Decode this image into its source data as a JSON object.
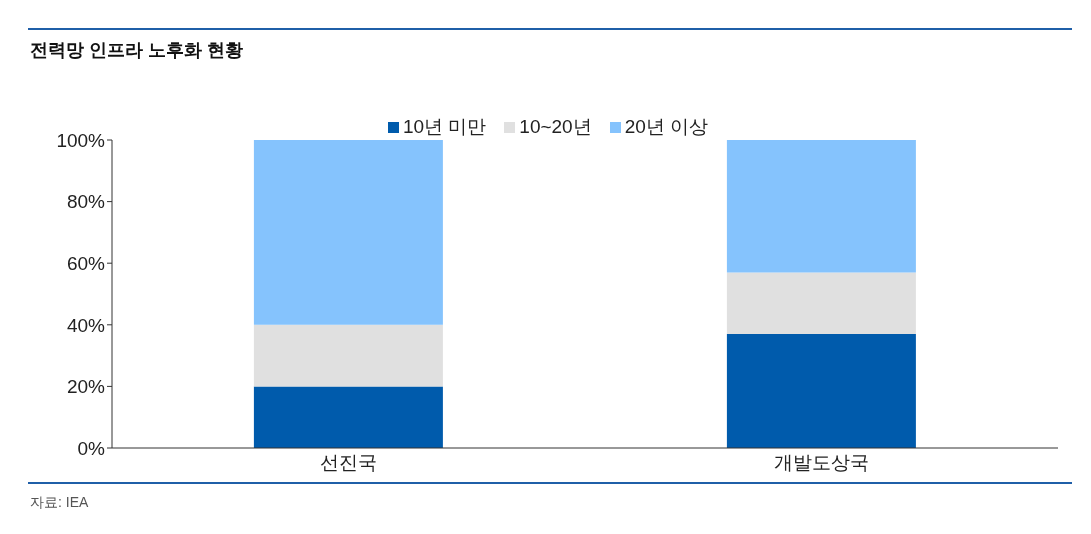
{
  "chart_data": {
    "type": "bar",
    "title": "전력망 인프라 노후화 현황",
    "categories": [
      "선진국",
      "개발도상국"
    ],
    "stacked": true,
    "series": [
      {
        "name": "10년 미만",
        "color": "#005bac",
        "values": [
          20,
          37
        ]
      },
      {
        "name": "10~20년",
        "color": "#e0e0e0",
        "values": [
          20,
          20
        ]
      },
      {
        "name": "20년 이상",
        "color": "#85c3fd",
        "values": [
          60,
          43
        ]
      }
    ],
    "ylim": [
      0,
      100
    ],
    "yticks": [
      {
        "value": 0,
        "label": "0%"
      },
      {
        "value": 20,
        "label": "20%"
      },
      {
        "value": 40,
        "label": "40%"
      },
      {
        "value": 60,
        "label": "60%"
      },
      {
        "value": 80,
        "label": "80%"
      },
      {
        "value": 100,
        "label": "100%"
      }
    ],
    "grid": false,
    "legend": "top",
    "annotations": [
      "자료: IEA"
    ]
  }
}
